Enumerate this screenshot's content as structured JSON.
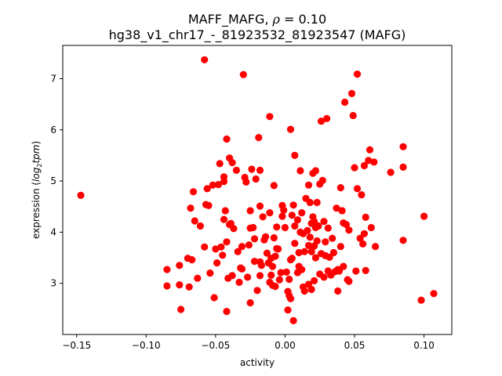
{
  "chart_data": {
    "type": "scatter",
    "title_line1_prefix": "MAFF_MAFG, ",
    "title_rho_symbol": "ρ",
    "title_line1_suffix": " = 0.10",
    "title_line2": "hg38_v1_chr17_-_81923532_81923547 (MAFG)",
    "xlabel": "activity",
    "ylabel_prefix": "expression (",
    "ylabel_italic": "log",
    "ylabel_sub": "2",
    "ylabel_italic2": "tpm",
    "ylabel_suffix": ")",
    "xlim": [
      -0.16,
      0.12
    ],
    "ylim": [
      2.0,
      7.65
    ],
    "xticks": [
      -0.15,
      -0.1,
      -0.05,
      0.0,
      0.05,
      0.1
    ],
    "xtick_labels": [
      "−0.15",
      "−0.10",
      "−0.05",
      "0.00",
      "0.05",
      "0.10"
    ],
    "yticks": [
      3,
      4,
      5,
      6,
      7
    ],
    "ytick_labels": [
      "3",
      "4",
      "5",
      "6",
      "7"
    ],
    "marker_color": "#ff0000",
    "points": [
      [
        -0.147,
        4.72
      ],
      [
        -0.085,
        3.27
      ],
      [
        -0.085,
        2.95
      ],
      [
        -0.076,
        3.35
      ],
      [
        -0.076,
        2.97
      ],
      [
        -0.075,
        2.49
      ],
      [
        -0.07,
        3.49
      ],
      [
        -0.069,
        2.93
      ],
      [
        -0.068,
        4.47
      ],
      [
        -0.067,
        3.46
      ],
      [
        -0.066,
        4.79
      ],
      [
        -0.065,
        4.22
      ],
      [
        -0.063,
        3.1
      ],
      [
        -0.061,
        4.12
      ],
      [
        -0.058,
        7.37
      ],
      [
        -0.058,
        3.71
      ],
      [
        -0.057,
        4.54
      ],
      [
        -0.056,
        4.85
      ],
      [
        -0.055,
        4.52
      ],
      [
        -0.054,
        3.2
      ],
      [
        -0.052,
        4.92
      ],
      [
        -0.051,
        2.72
      ],
      [
        -0.05,
        3.67
      ],
      [
        -0.049,
        3.4
      ],
      [
        -0.048,
        4.93
      ],
      [
        -0.047,
        5.34
      ],
      [
        -0.046,
        3.71
      ],
      [
        -0.045,
        3.55
      ],
      [
        -0.044,
        5.08
      ],
      [
        -0.044,
        4.99
      ],
      [
        -0.044,
        4.25
      ],
      [
        -0.043,
        4.42
      ],
      [
        -0.042,
        5.82
      ],
      [
        -0.042,
        2.45
      ],
      [
        -0.042,
        3.81
      ],
      [
        -0.041,
        3.1
      ],
      [
        -0.04,
        5.45
      ],
      [
        -0.04,
        4.15
      ],
      [
        -0.039,
        4.17
      ],
      [
        -0.038,
        5.36
      ],
      [
        -0.038,
        3.15
      ],
      [
        -0.037,
        4.07
      ],
      [
        -0.035,
        5.21
      ],
      [
        -0.034,
        3.62
      ],
      [
        -0.033,
        3.02
      ],
      [
        -0.032,
        3.3
      ],
      [
        -0.031,
        3.72
      ],
      [
        -0.031,
        3.28
      ],
      [
        -0.03,
        7.08
      ],
      [
        -0.029,
        5.07
      ],
      [
        -0.028,
        4.98
      ],
      [
        -0.027,
        3.12
      ],
      [
        -0.026,
        3.75
      ],
      [
        -0.025,
        4.42
      ],
      [
        -0.025,
        4.08
      ],
      [
        -0.025,
        2.62
      ],
      [
        -0.024,
        5.23
      ],
      [
        -0.023,
        4.09
      ],
      [
        -0.022,
        3.87
      ],
      [
        -0.022,
        3.43
      ],
      [
        -0.021,
        5.04
      ],
      [
        -0.02,
        2.86
      ],
      [
        -0.019,
        5.85
      ],
      [
        -0.018,
        5.21
      ],
      [
        -0.018,
        4.51
      ],
      [
        -0.018,
        3.42
      ],
      [
        -0.018,
        3.15
      ],
      [
        -0.017,
        3.35
      ],
      [
        -0.016,
        4.3
      ],
      [
        -0.015,
        3.85
      ],
      [
        -0.014,
        3.91
      ],
      [
        -0.013,
        3.59
      ],
      [
        -0.012,
        3.4
      ],
      [
        -0.011,
        6.26
      ],
      [
        -0.011,
        4.38
      ],
      [
        -0.011,
        3.02
      ],
      [
        -0.01,
        3.49
      ],
      [
        -0.01,
        3.16
      ],
      [
        -0.009,
        3.33
      ],
      [
        -0.009,
        2.96
      ],
      [
        -0.008,
        4.91
      ],
      [
        -0.008,
        3.89
      ],
      [
        -0.007,
        2.94
      ],
      [
        -0.007,
        3.53
      ],
      [
        -0.006,
        4.1
      ],
      [
        -0.006,
        3.68
      ],
      [
        -0.005,
        3.67
      ],
      [
        -0.004,
        3.07
      ],
      [
        -0.003,
        3.21
      ],
      [
        -0.002,
        4.52
      ],
      [
        -0.002,
        4.31
      ],
      [
        -0.001,
        4.43
      ],
      [
        0.0,
        4.09
      ],
      [
        0.001,
        3.22
      ],
      [
        0.002,
        2.84
      ],
      [
        0.002,
        2.48
      ],
      [
        0.003,
        3.08
      ],
      [
        0.003,
        2.76
      ],
      [
        0.004,
        6.01
      ],
      [
        0.004,
        3.46
      ],
      [
        0.004,
        2.7
      ],
      [
        0.005,
        4.33
      ],
      [
        0.005,
        3.49
      ],
      [
        0.006,
        2.27
      ],
      [
        0.006,
        4.53
      ],
      [
        0.007,
        5.5
      ],
      [
        0.007,
        3.78
      ],
      [
        0.007,
        4.12
      ],
      [
        0.009,
        4.24
      ],
      [
        0.009,
        3.21
      ],
      [
        0.01,
        3.6
      ],
      [
        0.01,
        3.33
      ],
      [
        0.011,
        5.2
      ],
      [
        0.011,
        4.0
      ],
      [
        0.012,
        4.38
      ],
      [
        0.012,
        3.27
      ],
      [
        0.013,
        3.97
      ],
      [
        0.013,
        2.93
      ],
      [
        0.014,
        3.62
      ],
      [
        0.014,
        2.85
      ],
      [
        0.015,
        4.66
      ],
      [
        0.016,
        4.03
      ],
      [
        0.017,
        4.92
      ],
      [
        0.017,
        3.74
      ],
      [
        0.017,
        2.98
      ],
      [
        0.018,
        4.58
      ],
      [
        0.018,
        3.9
      ],
      [
        0.019,
        4.17
      ],
      [
        0.019,
        3.62
      ],
      [
        0.019,
        2.88
      ],
      [
        0.02,
        5.15
      ],
      [
        0.02,
        4.3
      ],
      [
        0.021,
        4.21
      ],
      [
        0.021,
        3.73
      ],
      [
        0.021,
        3.05
      ],
      [
        0.022,
        5.2
      ],
      [
        0.022,
        4.09
      ],
      [
        0.022,
        3.5
      ],
      [
        0.023,
        4.58
      ],
      [
        0.023,
        3.83
      ],
      [
        0.024,
        4.12
      ],
      [
        0.025,
        4.94
      ],
      [
        0.025,
        3.18
      ],
      [
        0.026,
        6.17
      ],
      [
        0.026,
        3.58
      ],
      [
        0.027,
        5.01
      ],
      [
        0.028,
        3.12
      ],
      [
        0.028,
        4.21
      ],
      [
        0.029,
        3.54
      ],
      [
        0.029,
        3.81
      ],
      [
        0.03,
        6.22
      ],
      [
        0.031,
        3.24
      ],
      [
        0.031,
        4.08
      ],
      [
        0.032,
        3.51
      ],
      [
        0.033,
        3.16
      ],
      [
        0.034,
        3.88
      ],
      [
        0.035,
        3.6
      ],
      [
        0.036,
        3.23
      ],
      [
        0.037,
        4.47
      ],
      [
        0.038,
        2.85
      ],
      [
        0.038,
        3.27
      ],
      [
        0.039,
        3.24
      ],
      [
        0.04,
        3.72
      ],
      [
        0.04,
        4.87
      ],
      [
        0.041,
        4.42
      ],
      [
        0.042,
        3.33
      ],
      [
        0.042,
        4.18
      ],
      [
        0.043,
        6.54
      ],
      [
        0.044,
        4.15
      ],
      [
        0.045,
        3.07
      ],
      [
        0.046,
        3.04
      ],
      [
        0.046,
        4.04
      ],
      [
        0.048,
        6.71
      ],
      [
        0.049,
        6.28
      ],
      [
        0.05,
        5.26
      ],
      [
        0.051,
        3.24
      ],
      [
        0.052,
        7.09
      ],
      [
        0.052,
        4.85
      ],
      [
        0.054,
        3.88
      ],
      [
        0.055,
        4.73
      ],
      [
        0.056,
        3.77
      ],
      [
        0.057,
        5.3
      ],
      [
        0.057,
        3.97
      ],
      [
        0.058,
        4.29
      ],
      [
        0.058,
        3.25
      ],
      [
        0.06,
        5.4
      ],
      [
        0.061,
        5.61
      ],
      [
        0.062,
        4.09
      ],
      [
        0.064,
        5.37
      ],
      [
        0.065,
        3.72
      ],
      [
        0.076,
        5.17
      ],
      [
        0.085,
        5.67
      ],
      [
        0.085,
        5.27
      ],
      [
        0.085,
        3.84
      ],
      [
        0.098,
        2.67
      ],
      [
        0.1,
        4.31
      ],
      [
        0.107,
        2.8
      ]
    ]
  }
}
